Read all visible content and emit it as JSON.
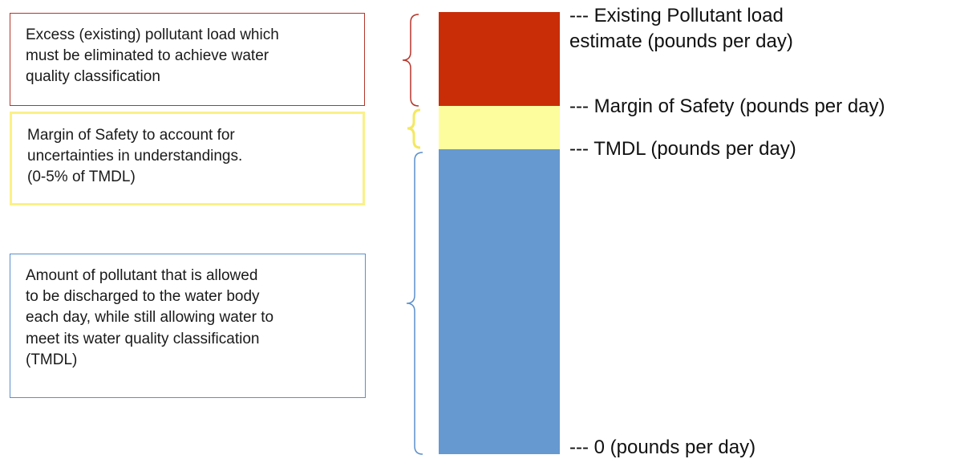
{
  "callouts": {
    "excess": "Excess (existing) pollutant load which\nmust be eliminated to achieve water\nquality classification",
    "margin_of_safety": "Margin of Safety to account for\nuncertainties in understandings.\n(0-5% of TMDL)",
    "tmdl": "Amount of pollutant that is allowed\nto be discharged to the water body\neach day, while still allowing water to\nmeet its water quality classification\n(TMDL)"
  },
  "levels": {
    "existing": "--- Existing Pollutant load\nestimate (pounds per day)",
    "margin_of_safety": "--- Margin of Safety (pounds per day)",
    "tmdl": "--- TMDL (pounds per day)",
    "zero": "--- 0 (pounds per day)"
  },
  "segments": [
    {
      "id": "excess",
      "color": "#c92d07"
    },
    {
      "id": "margin-of-safety",
      "color": "#fdfd9e"
    },
    {
      "id": "tmdl",
      "color": "#6699d0"
    }
  ],
  "bracket_colors": {
    "excess": "#b5352a",
    "margin_of_safety": "#f4e85f",
    "tmdl": "#5b8fcc"
  }
}
